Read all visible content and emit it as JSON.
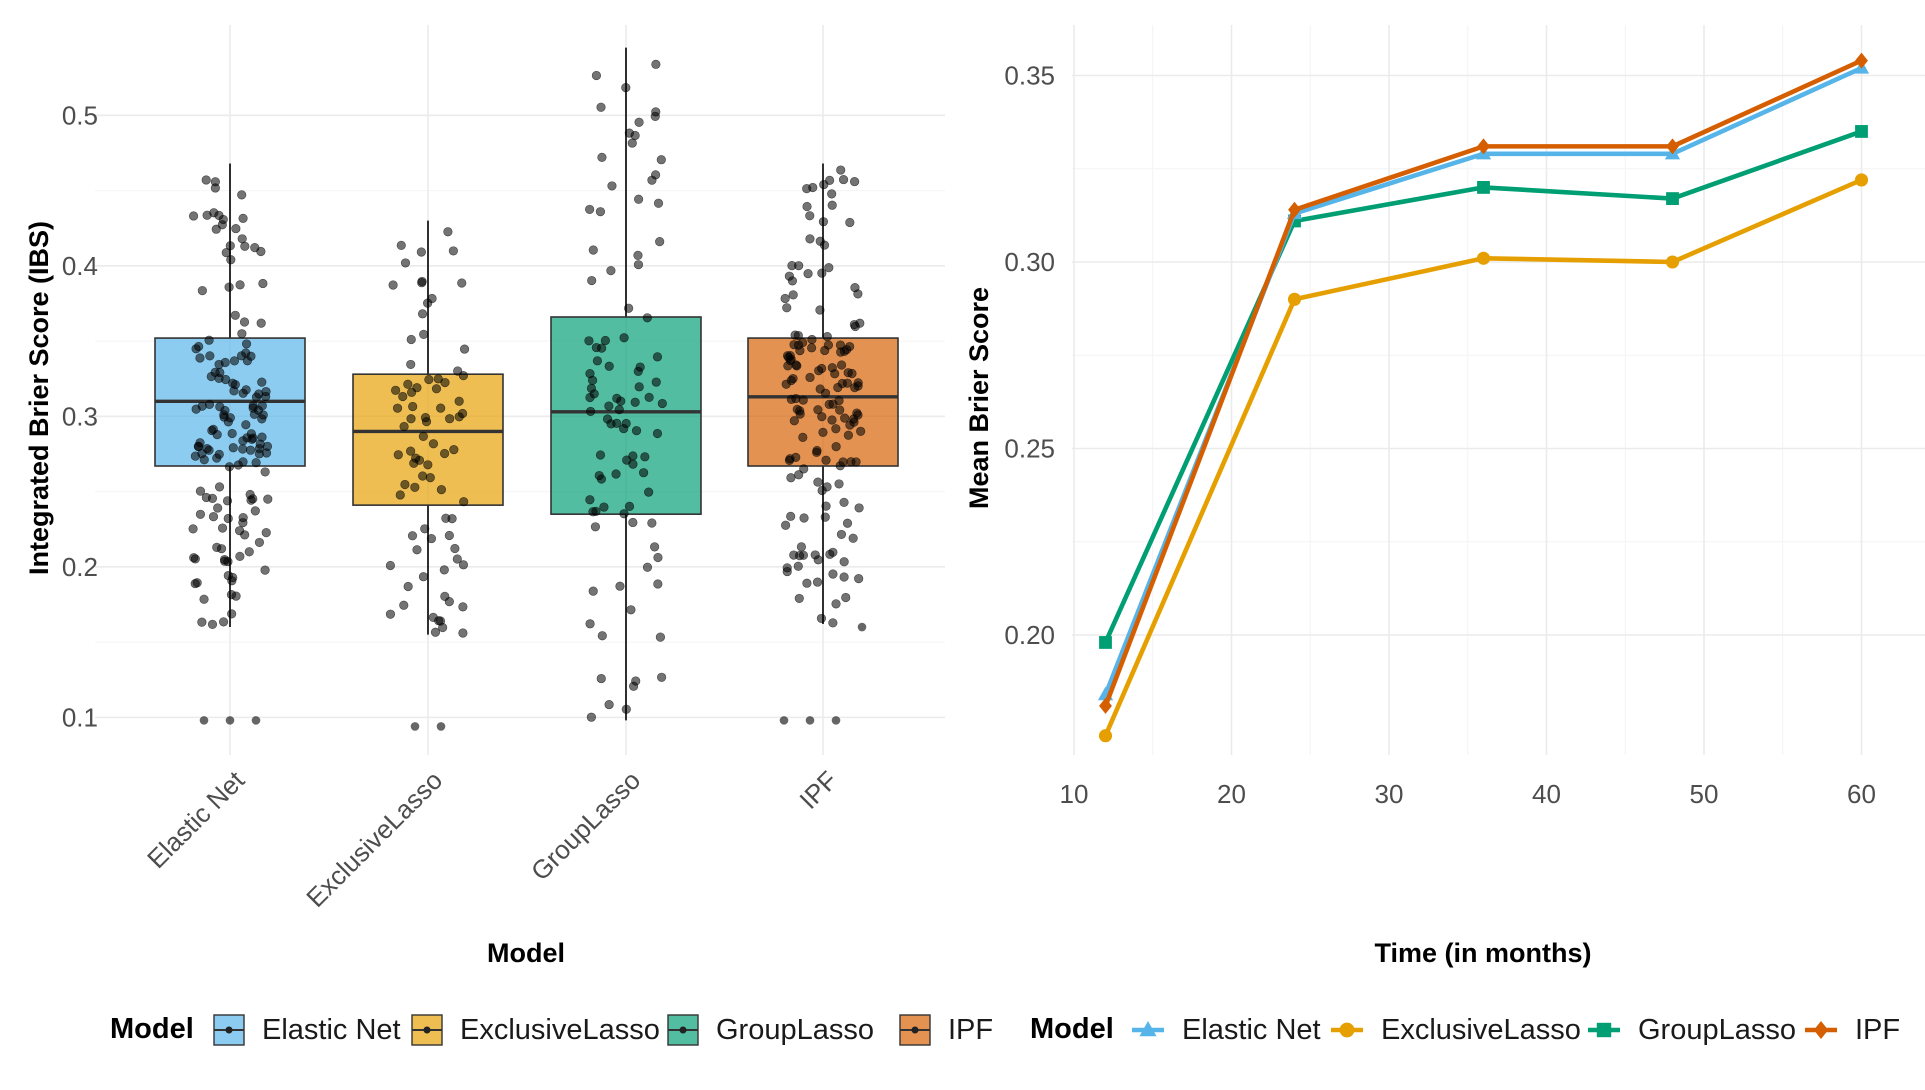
{
  "chart_data": [
    {
      "type": "box",
      "title": "",
      "xlabel": "Model",
      "ylabel": "Integrated Brier Score (IBS)",
      "ylim": [
        0.075,
        0.56
      ],
      "yticks": [
        0.1,
        0.2,
        0.3,
        0.4,
        0.5
      ],
      "ytick_labels": [
        "0.1",
        "0.2",
        "0.3",
        "0.4",
        "0.5"
      ],
      "grid": true,
      "legend": {
        "title": "Model",
        "position": "bottom"
      },
      "categories": [
        "Elastic Net",
        "ExclusiveLasso",
        "GroupLasso",
        "IPF"
      ],
      "colors": [
        "#56B4E9",
        "#E69F00",
        "#009E73",
        "#D55E00"
      ],
      "boxes": [
        {
          "name": "Elastic Net",
          "whisker_low": 0.16,
          "q1": 0.267,
          "median": 0.31,
          "q3": 0.352,
          "whisker_high": 0.468,
          "outliers": [
            0.098,
            0.098,
            0.098
          ]
        },
        {
          "name": "ExclusiveLasso",
          "whisker_low": 0.155,
          "q1": 0.241,
          "median": 0.29,
          "q3": 0.328,
          "whisker_high": 0.43,
          "outliers": [
            0.094,
            0.094
          ]
        },
        {
          "name": "GroupLasso",
          "whisker_low": 0.098,
          "q1": 0.235,
          "median": 0.303,
          "q3": 0.366,
          "whisker_high": 0.545,
          "outliers": []
        },
        {
          "name": "IPF",
          "whisker_low": 0.162,
          "q1": 0.267,
          "median": 0.313,
          "q3": 0.352,
          "whisker_high": 0.468,
          "outliers": [
            0.098,
            0.098,
            0.098,
            0.16
          ]
        }
      ]
    },
    {
      "type": "line",
      "title": "",
      "xlabel": "Time (in months)",
      "ylabel": "Mean Brier Score",
      "xlim": [
        10,
        61.5
      ],
      "ylim": [
        0.165,
        0.364
      ],
      "xticks": [
        10,
        20,
        30,
        40,
        50,
        60
      ],
      "xtick_labels": [
        "10",
        "20",
        "30",
        "40",
        "50",
        "60"
      ],
      "yticks": [
        0.2,
        0.25,
        0.3,
        0.35
      ],
      "ytick_labels": [
        "0.20",
        "0.25",
        "0.30",
        "0.35"
      ],
      "grid": true,
      "legend": {
        "title": "Model",
        "position": "bottom"
      },
      "x": [
        12,
        24,
        36,
        48,
        60
      ],
      "series": [
        {
          "name": "Elastic Net",
          "color": "#56B4E9",
          "marker": "triangle",
          "values": [
            0.184,
            0.313,
            0.329,
            0.329,
            0.352
          ]
        },
        {
          "name": "ExclusiveLasso",
          "color": "#E69F00",
          "marker": "circle",
          "values": [
            0.173,
            0.29,
            0.301,
            0.3,
            0.322
          ]
        },
        {
          "name": "GroupLasso",
          "color": "#009E73",
          "marker": "square",
          "values": [
            0.198,
            0.311,
            0.32,
            0.317,
            0.335
          ]
        },
        {
          "name": "IPF",
          "color": "#D55E00",
          "marker": "diamond",
          "values": [
            0.181,
            0.314,
            0.331,
            0.331,
            0.354
          ]
        }
      ]
    }
  ]
}
